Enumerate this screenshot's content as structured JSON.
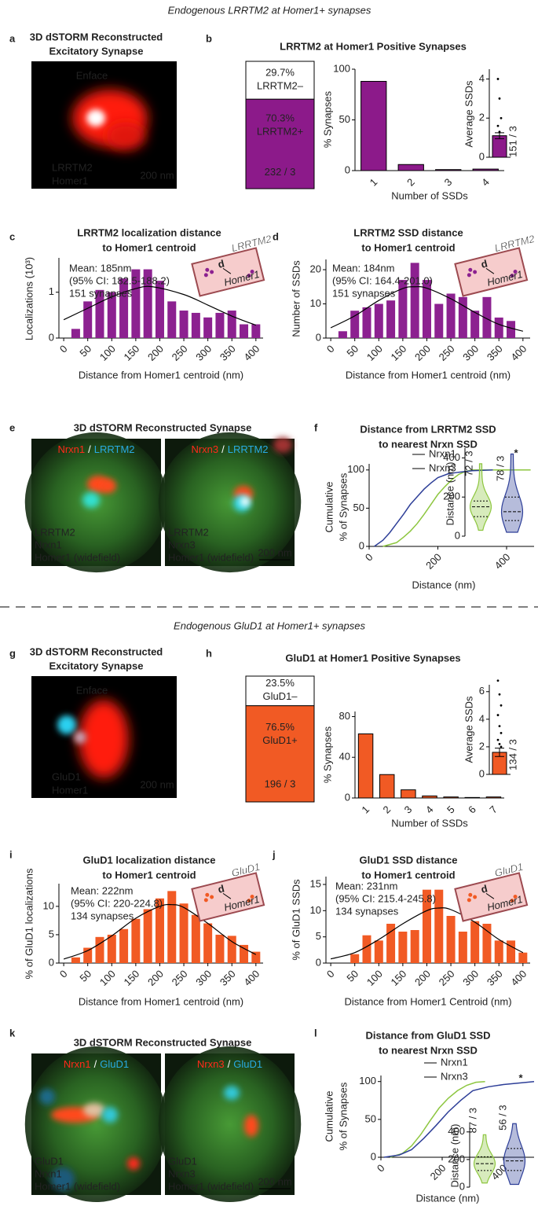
{
  "sections": [
    "Endogenous LRRTM2 at Homer1+ synapses",
    "Endogenous GluD1 at Homer1+ synapses"
  ],
  "panel_letters": [
    "a",
    "b",
    "c",
    "d",
    "e",
    "f",
    "g",
    "h",
    "i",
    "j",
    "k",
    "l"
  ],
  "images": [
    {
      "title": [
        "3D dSTORM Reconstructed",
        "Excitatory Synapse"
      ],
      "view": "Enface",
      "channels": [
        "LRRTM2",
        "Homer1"
      ],
      "colors": [
        "#29abe2",
        "#ff2a1a"
      ],
      "scale_bar": "200 nm"
    },
    {
      "title": "3D dSTORM Reconstructed Synapse",
      "colors": [
        "#29abe2",
        "#ff2a1a",
        "#8dc63f"
      ],
      "tiles": [
        {
          "heading": [
            "Nrxn1",
            "/",
            "LRRTM2"
          ],
          "channels": [
            "LRRTM2",
            "Nrxn1",
            "Homer1 (widefield)"
          ]
        },
        {
          "heading": [
            "Nrxn3",
            "/",
            "LRRTM2"
          ],
          "channels": [
            "LRRTM2",
            "Nrxn3",
            "Homer1 (widefield)"
          ],
          "scale_bar": "200 nm"
        }
      ]
    },
    {
      "title": [
        "3D dSTORM Reconstructed",
        "Excitatory Synapse"
      ],
      "view": "Enface",
      "channels": [
        "GluD1",
        "Homer1"
      ],
      "colors": [
        "#29abe2",
        "#ff2a1a"
      ],
      "scale_bar": "200 nm"
    },
    {
      "title": "3D dSTORM Reconstructed Synapse",
      "colors": [
        "#29abe2",
        "#ff2a1a",
        "#8dc63f"
      ],
      "tiles": [
        {
          "heading": [
            "Nrxn1",
            "/",
            "GluD1"
          ],
          "channels": [
            "GluD1",
            "Nrxn1",
            "Homer1 (widefield)"
          ]
        },
        {
          "heading": [
            "Nrxn3",
            "/",
            "GluD1"
          ],
          "channels": [
            "GluD1",
            "Nrxn3",
            "Homer1 (widefield)"
          ],
          "scale_bar": "200 nm"
        }
      ]
    }
  ],
  "chart_data": [
    {
      "type": "stacked-bar",
      "categories": [
        "LRRTM2+",
        "LRRTM2–"
      ],
      "values": [
        70.3,
        29.7
      ],
      "value_labels": [
        "70.3%",
        "29.7%"
      ],
      "colors": [
        "#8c1a8a",
        "#ffffff"
      ],
      "annotation": "232 / 3"
    },
    {
      "type": "bar",
      "title": "LRRTM2 at Homer1 Positive Synapses",
      "categories": [
        "1",
        "2",
        "3",
        "4"
      ],
      "values": [
        88,
        6,
        1,
        1.5
      ],
      "color": "#8c1a8a",
      "ylabel": "% Synapses",
      "xlabel": "Number of SSDs",
      "ylim": [
        0,
        100
      ],
      "yticks": [
        0,
        50,
        100
      ]
    },
    {
      "type": "dot-bar",
      "ylabel": "Average SSDs",
      "values": [
        1.1
      ],
      "errors": [
        0.15
      ],
      "points": [
        4,
        3,
        2,
        1.6,
        1.3
      ],
      "color": "#8c1a8a",
      "ylim": [
        0,
        4.5
      ],
      "yticks": [
        0,
        2,
        4
      ],
      "annotation": "151 / 3"
    },
    {
      "type": "bar",
      "title": [
        "LRRTM2 localization distance",
        "to Homer1 centroid"
      ],
      "ylabel": "Localizations (10³)",
      "xlabel": "Distance from Homer1 centroid (nm)",
      "color": "#8c2190",
      "x": [
        25,
        50,
        75,
        100,
        125,
        150,
        175,
        200,
        225,
        250,
        275,
        300,
        325,
        350,
        375,
        400
      ],
      "values": [
        0.2,
        0.8,
        1.05,
        1.0,
        1.3,
        1.5,
        1.5,
        1.25,
        0.8,
        0.6,
        0.55,
        0.45,
        0.55,
        0.6,
        0.3,
        0.3
      ],
      "fit": {
        "x": [
          0,
          50,
          100,
          150,
          185,
          250,
          300,
          350,
          400
        ],
        "values": [
          0.4,
          0.65,
          0.9,
          1.08,
          1.12,
          0.95,
          0.72,
          0.48,
          0.28
        ]
      },
      "xlim": [
        -10,
        415
      ],
      "xticks": [
        0,
        50,
        100,
        150,
        200,
        250,
        300,
        350,
        400
      ],
      "ylim": [
        0,
        1.75
      ],
      "yticks": [
        0,
        1
      ],
      "annotations": [
        "Mean: 185nm",
        "(95% CI: 182.5-188.2)",
        "151 synapses"
      ],
      "schematic": [
        "LRRTM2",
        "Homer1",
        "d"
      ]
    },
    {
      "type": "bar",
      "title": [
        "LRRTM2 SSD distance",
        "to Homer1 centroid"
      ],
      "ylabel": "Number of SSDs",
      "xlabel": "Distance from Homer1 centroid (nm)",
      "color": "#8c2190",
      "x": [
        25,
        50,
        75,
        100,
        125,
        150,
        175,
        200,
        225,
        250,
        275,
        300,
        325,
        350,
        375
      ],
      "values": [
        2,
        8,
        9,
        10,
        11,
        17,
        22,
        17,
        10,
        13,
        12,
        8,
        12,
        6,
        5
      ],
      "fit": {
        "x": [
          0,
          50,
          100,
          150,
          175,
          200,
          250,
          300,
          350,
          400
        ],
        "values": [
          3,
          6.5,
          11,
          14.5,
          15,
          14.6,
          11.5,
          7.5,
          4,
          2
        ]
      },
      "xlim": [
        -10,
        415
      ],
      "xticks": [
        0,
        50,
        100,
        150,
        200,
        250,
        300,
        350,
        400
      ],
      "ylim": [
        0,
        23
      ],
      "yticks": [
        0,
        10,
        20
      ],
      "annotations": [
        "Mean: 184nm",
        "(95% CI: 164.4-201.0)",
        "151 synapses"
      ],
      "schematic": [
        "LRRTM2",
        "Homer1",
        "d"
      ]
    },
    {
      "type": "line",
      "title": [
        "Distance from LRRTM2 SSD",
        "to nearest Nrxn SSD"
      ],
      "ylabel": [
        "Cumulative",
        "% of Synapses"
      ],
      "xlabel": "Distance (nm)",
      "series": [
        {
          "name": "Nrxn1",
          "color": "#8dc63f",
          "x": [
            40,
            80,
            100,
            120,
            140,
            160,
            180,
            200,
            220,
            240,
            260,
            280,
            300,
            470
          ],
          "values": [
            0,
            5,
            12,
            20,
            30,
            42,
            55,
            68,
            78,
            87,
            94,
            98,
            100,
            100
          ]
        },
        {
          "name": "Nrxn3",
          "color": "#2e3f98",
          "x": [
            15,
            40,
            60,
            80,
            100,
            120,
            140,
            160,
            180,
            200,
            230,
            260,
            300,
            360
          ],
          "values": [
            0,
            8,
            18,
            30,
            42,
            55,
            65,
            75,
            83,
            90,
            95,
            97,
            99,
            100
          ]
        }
      ],
      "xlim": [
        0,
        480
      ],
      "xticks": [
        0,
        200,
        400
      ],
      "ylim": [
        0,
        108
      ],
      "yticks": [
        0,
        50,
        100
      ]
    },
    {
      "type": "violin",
      "ylabel": "Distance (nm)",
      "ylim": [
        0,
        450
      ],
      "yticks": [
        0,
        200,
        400
      ],
      "annotation": "*",
      "groups": [
        {
          "color": "#8dc63f",
          "median": 150,
          "quartiles": [
            100,
            180
          ],
          "range": [
            30,
            370
          ],
          "n_label": "72 / 3"
        },
        {
          "color": "#2e3f98",
          "median": 125,
          "quartiles": [
            80,
            200
          ],
          "range": [
            20,
            420
          ],
          "n_label": "78 / 3"
        }
      ]
    },
    {
      "type": "stacked-bar",
      "categories": [
        "GluD1+",
        "GluD1–"
      ],
      "values": [
        76.5,
        23.5
      ],
      "value_labels": [
        "76.5%",
        "23.5%"
      ],
      "colors": [
        "#f15a24",
        "#ffffff"
      ],
      "annotation": "196 / 3"
    },
    {
      "type": "bar",
      "title": "GluD1 at Homer1 Positive Synapses",
      "categories": [
        "1",
        "2",
        "3",
        "4",
        "5",
        "6",
        "7"
      ],
      "values": [
        63,
        23,
        8,
        2,
        1,
        0.5,
        1
      ],
      "color": "#f15a24",
      "ylabel": "% Synapses",
      "xlabel": "Number of SSDs",
      "ylim": [
        0,
        85
      ],
      "yticks": [
        0,
        40,
        80
      ]
    },
    {
      "type": "dot-bar",
      "ylabel": "Average SSDs",
      "values": [
        1.6
      ],
      "errors": [
        0.3
      ],
      "points": [
        6.8,
        5.8,
        5,
        4.3,
        3.5,
        3,
        2.5,
        2.2,
        2
      ],
      "color": "#f15a24",
      "ylim": [
        0,
        6.5
      ],
      "yticks": [
        0,
        2,
        4,
        6
      ],
      "annotation": "134 / 3"
    },
    {
      "type": "bar",
      "title": [
        "GluD1 localization distance",
        "to Homer1 centroid"
      ],
      "ylabel": "% of GluD1 localizations",
      "xlabel": "Distance from Homer1 centroid (nm)",
      "color": "#f15a24",
      "x": [
        25,
        50,
        75,
        100,
        125,
        150,
        175,
        200,
        225,
        250,
        275,
        300,
        325,
        350,
        375,
        400
      ],
      "values": [
        1,
        2.7,
        4.6,
        5.0,
        6.0,
        7.8,
        9.5,
        11.4,
        12.7,
        10.5,
        8.5,
        7.0,
        5.0,
        4.8,
        3.2,
        2.0
      ],
      "fit": {
        "x": [
          0,
          50,
          100,
          150,
          200,
          225,
          250,
          300,
          350,
          400
        ],
        "values": [
          0.7,
          2.2,
          4.8,
          7.9,
          10,
          10.3,
          9.8,
          7,
          3.8,
          1.5
        ]
      },
      "xlim": [
        -10,
        415
      ],
      "xticks": [
        0,
        50,
        100,
        150,
        200,
        250,
        300,
        350,
        400
      ],
      "ylim": [
        0,
        14
      ],
      "yticks": [
        0,
        5,
        10
      ],
      "annotations": [
        "Mean: 222nm",
        "(95% CI: 220-224.8)",
        "134 synapses"
      ],
      "schematic": [
        "GluD1",
        "Homer1",
        "d"
      ]
    },
    {
      "type": "bar",
      "title": [
        "GluD1 SSD distance",
        "to Homer1 centroid"
      ],
      "ylabel": "% of GluD1 SSDs",
      "xlabel": "Distance from Homer1 Centroid (nm)",
      "color": "#f15a24",
      "x": [
        50,
        75,
        100,
        125,
        150,
        175,
        200,
        225,
        250,
        275,
        300,
        325,
        350,
        375,
        400
      ],
      "values": [
        1.7,
        5.3,
        4.3,
        7.5,
        6,
        6.3,
        14,
        14,
        9,
        6,
        8,
        7.5,
        4.3,
        4.3,
        2
      ],
      "fit": {
        "x": [
          0,
          50,
          100,
          150,
          200,
          225,
          250,
          300,
          350,
          400
        ],
        "values": [
          0.8,
          2,
          4.5,
          7.5,
          10,
          10.5,
          10.2,
          7.8,
          4.5,
          2
        ]
      },
      "xlim": [
        -10,
        415
      ],
      "xticks": [
        0,
        50,
        100,
        150,
        200,
        250,
        300,
        350,
        400
      ],
      "ylim": [
        0,
        16.5
      ],
      "yticks": [
        0,
        5,
        10,
        15
      ],
      "annotations": [
        "Mean: 231nm",
        "(95% CI: 215.4-245.8)",
        "134 synapses"
      ],
      "schematic": [
        "GluD1",
        "Homer1",
        "d"
      ]
    },
    {
      "type": "line",
      "title": [
        "Distance from GluD1 SSD",
        "to nearest Nrxn SSD"
      ],
      "ylabel": [
        "Cumulative",
        "% of Synapses"
      ],
      "xlabel": "Distance (nm)",
      "series": [
        {
          "name": "Nrxn1",
          "color": "#8dc63f",
          "x": [
            30,
            70,
            100,
            130,
            160,
            190,
            220,
            250,
            280,
            310,
            340
          ],
          "values": [
            0,
            5,
            15,
            30,
            48,
            65,
            78,
            88,
            95,
            99,
            100
          ]
        },
        {
          "name": "Nrxn3",
          "color": "#2e3f98",
          "x": [
            10,
            60,
            100,
            140,
            180,
            220,
            260,
            300,
            350,
            400,
            450,
            500
          ],
          "values": [
            0,
            3,
            10,
            25,
            42,
            60,
            75,
            88,
            93,
            96,
            98,
            100
          ]
        }
      ],
      "xlim": [
        0,
        500
      ],
      "xticks": [
        0,
        200,
        400
      ],
      "ylim": [
        0,
        108
      ],
      "yticks": [
        0,
        50,
        100
      ]
    },
    {
      "type": "violin",
      "ylabel": "Distance (nm)",
      "ylim": [
        0,
        450
      ],
      "yticks": [
        0,
        200,
        400
      ],
      "annotation": "*",
      "groups": [
        {
          "color": "#8dc63f",
          "median": 170,
          "quartiles": [
            120,
            220
          ],
          "range": [
            30,
            380
          ],
          "n_label": "87 / 3"
        },
        {
          "color": "#2e3f98",
          "median": 190,
          "quartiles": [
            120,
            280
          ],
          "range": [
            20,
            460
          ],
          "n_label": "56 / 3"
        }
      ]
    }
  ]
}
